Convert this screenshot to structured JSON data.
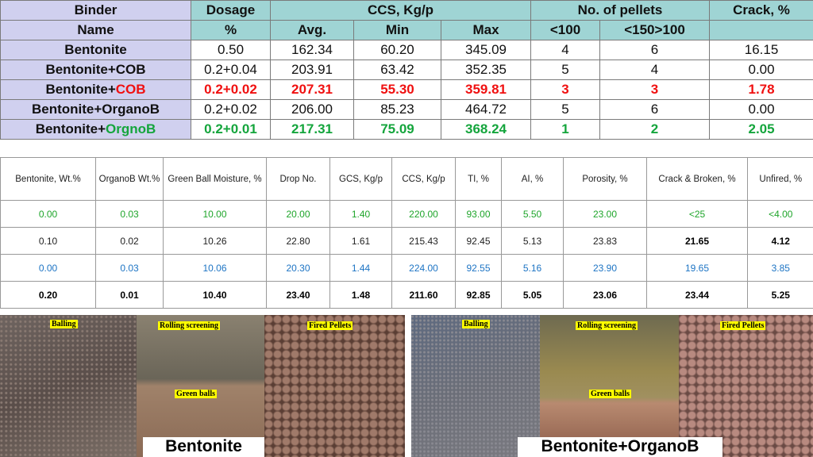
{
  "table1": {
    "headers": {
      "binder": "Binder",
      "name": "Name",
      "dosage": "Dosage",
      "pct": "%",
      "ccs": "CCS, Kg/p",
      "avg": "Avg.",
      "min": "Min",
      "max": "Max",
      "pellets": "No. of pellets",
      "lt100": "<100",
      "b150": "<150>100",
      "crack": "Crack, %"
    },
    "rows": [
      {
        "name": "Bentonite",
        "suffix": "",
        "dosage": "0.50",
        "avg": "162.34",
        "min": "60.20",
        "max": "345.09",
        "lt100": "4",
        "b150": "6",
        "crack": "16.15"
      },
      {
        "name": "Bentonite+COB",
        "suffix": "",
        "dosage": "0.2+0.04",
        "avg": "203.91",
        "min": "63.42",
        "max": "352.35",
        "lt100": "5",
        "b150": "4",
        "crack": "0.00"
      },
      {
        "name": "Bentonite+",
        "suffix": "COB",
        "dosage": "0.2+0.02",
        "avg": "207.31",
        "min": "55.30",
        "max": "359.81",
        "lt100": "3",
        "b150": "3",
        "crack": "1.78"
      },
      {
        "name": "Bentonite+OrganoB",
        "suffix": "",
        "dosage": "0.2+0.02",
        "avg": "206.00",
        "min": "85.23",
        "max": "464.72",
        "lt100": "5",
        "b150": "6",
        "crack": "0.00"
      },
      {
        "name": "Bentonite+",
        "suffix": "OrgnoB",
        "dosage": "0.2+0.01",
        "avg": "217.31",
        "min": "75.09",
        "max": "368.24",
        "lt100": "1",
        "b150": "2",
        "crack": "2.05"
      }
    ]
  },
  "table2": {
    "headers": [
      "Bentonite, Wt.%",
      "OrganoB Wt.%",
      "Green Ball Moisture, %",
      "Drop No.",
      "GCS, Kg/p",
      "CCS, Kg/p",
      "TI, %",
      "AI, %",
      "Porosity, %",
      "Crack & Broken, %",
      "Unfired, %"
    ],
    "rows": [
      [
        "0.00",
        "0.03",
        "10.00",
        "20.00",
        "1.40",
        "220.00",
        "93.00",
        "5.50",
        "23.00",
        "<25",
        "<4.00"
      ],
      [
        "0.10",
        "0.02",
        "10.26",
        "22.80",
        "1.61",
        "215.43",
        "92.45",
        "5.13",
        "23.83",
        "21.65",
        "4.12"
      ],
      [
        "0.00",
        "0.03",
        "10.06",
        "20.30",
        "1.44",
        "224.00",
        "92.55",
        "5.16",
        "23.90",
        "19.65",
        "3.85"
      ],
      [
        "0.20",
        "0.01",
        "10.40",
        "23.40",
        "1.48",
        "211.60",
        "92.85",
        "5.05",
        "23.06",
        "23.44",
        "5.25"
      ]
    ]
  },
  "photos": {
    "labels": [
      "Balling",
      "Rolling screening",
      "Green balls",
      "Fired Pellets",
      "Balling",
      "Rolling screening",
      "Green balls",
      "Fired Pellets"
    ],
    "captions": [
      "Bentonite",
      "Bentonite+OrganoB"
    ]
  },
  "colors": {
    "red": "#f01010",
    "green": "#14a53c",
    "blue": "#1d74c4",
    "header": "#9fd4d4",
    "binder": "#d0d0ef"
  }
}
